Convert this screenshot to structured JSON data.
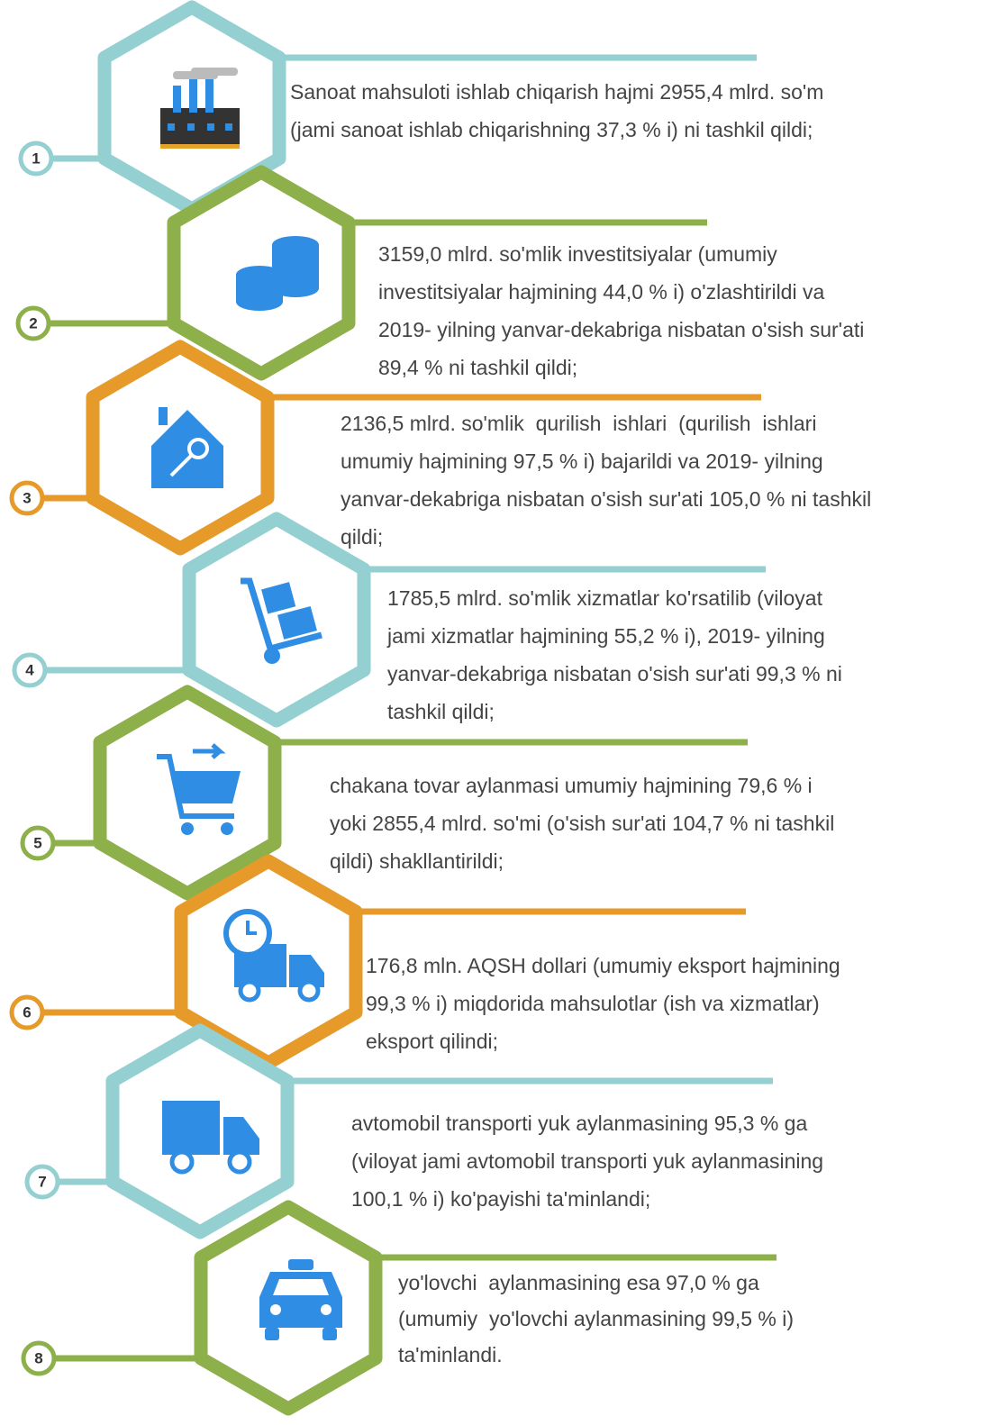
{
  "items": [
    {
      "number": "1",
      "lines": [
        "Sanoat mahsuloti ishlab chiqarish hajmi 2955,4 mlrd. so'm",
        "(jami sanoat ishlab chiqarishning 37,3 % i) ni tashkil qildi;"
      ]
    },
    {
      "number": "2",
      "lines": [
        "3159,0 mlrd. so'mlik investitsiyalar (umumiy",
        "investitsiyalar hajmining 44,0 % i) o'zlashtirildi va",
        "2019- yilning yanvar-dekabriga nisbatan o'sish sur'ati",
        "89,4 % ni tashkil qildi;"
      ]
    },
    {
      "number": "3",
      "lines": [
        "2136,5 mlrd. so'mlik  qurilish  ishlari  (qurilish  ishlari",
        "umumiy hajmining 97,5 % i) bajarildi va 2019- yilning",
        "yanvar-dekabriga nisbatan o'sish sur'ati 105,0 % ni tashkil",
        "qildi;"
      ]
    },
    {
      "number": "4",
      "lines": [
        "1785,5 mlrd. so'mlik xizmatlar ko'rsatilib (viloyat",
        "jami xizmatlar hajmining 55,2 % i), 2019- yilning",
        "yanvar-dekabriga nisbatan o'sish sur'ati 99,3 % ni",
        "tashkil qildi;"
      ]
    },
    {
      "number": "5",
      "lines": [
        "chakana tovar aylanmasi umumiy hajmining 79,6 % i",
        "yoki 2855,4 mlrd. so'mi (o'sish sur'ati 104,7 % ni tashkil",
        "qildi) shakllantirildi;"
      ]
    },
    {
      "number": "6",
      "lines": [
        "176,8 mln. AQSH dollari (umumiy eksport hajmining",
        "99,3 % i) miqdorida mahsulotlar (ish va xizmatlar)",
        "eksport qilindi;"
      ]
    },
    {
      "number": "7",
      "lines": [
        "avtomobil transporti yuk aylanmasining 95,3 % ga",
        "(viloyat jami avtomobil transporti yuk aylanmasining",
        "100,1 % i) ko'payishi ta'minlandi;"
      ]
    },
    {
      "number": "8",
      "lines": [
        "yo'lovchi  aylanmasining esa 97,0 % ga",
        "(umumiy  yo'lovchi aylanmasining 99,5 % i)",
        "ta'minlandi."
      ]
    }
  ]
}
